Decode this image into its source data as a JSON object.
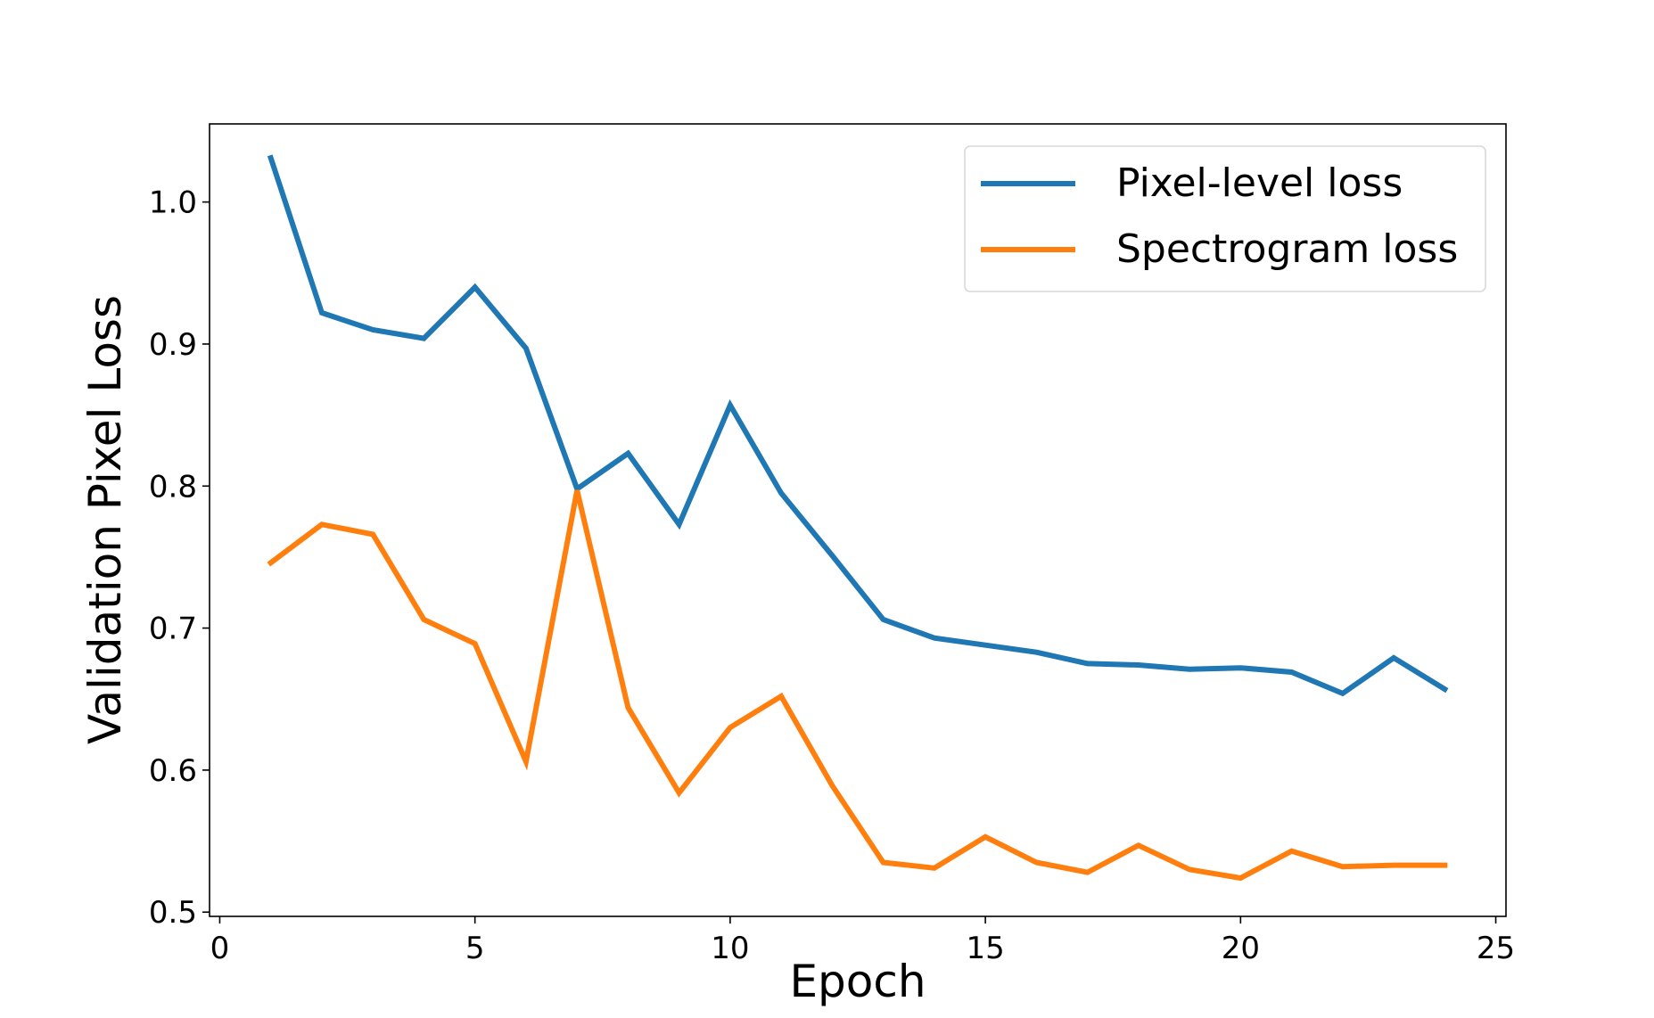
{
  "chart_data": {
    "type": "line",
    "title": "",
    "xlabel": "Epoch",
    "ylabel": "Validation Pixel Loss",
    "xlim": [
      -0.2,
      25.2
    ],
    "ylim": [
      0.497,
      1.055
    ],
    "xticks": [
      0,
      5,
      10,
      15,
      20,
      25
    ],
    "xtick_labels": [
      "0",
      "5",
      "10",
      "15",
      "20",
      "25"
    ],
    "yticks": [
      0.5,
      0.6,
      0.7,
      0.8,
      0.9,
      1.0
    ],
    "ytick_labels": [
      "0.5",
      "0.6",
      "0.7",
      "0.8",
      "0.9",
      "1.0"
    ],
    "grid": false,
    "legend_position": "top-right",
    "x": [
      1,
      2,
      3,
      4,
      5,
      6,
      7,
      8,
      9,
      10,
      11,
      12,
      13,
      14,
      15,
      16,
      17,
      18,
      19,
      20,
      21,
      22,
      23,
      24
    ],
    "series": [
      {
        "name": "Pixel-level loss",
        "color": "#1f77b4",
        "values": [
          1.031,
          0.922,
          0.91,
          0.904,
          0.94,
          0.897,
          0.798,
          0.823,
          0.773,
          0.857,
          0.795,
          0.751,
          0.706,
          0.693,
          0.688,
          0.683,
          0.675,
          0.674,
          0.671,
          0.672,
          0.669,
          0.654,
          0.679,
          0.657
        ]
      },
      {
        "name": "Spectrogram loss",
        "color": "#ff7f0e",
        "values": [
          0.746,
          0.773,
          0.766,
          0.706,
          0.689,
          0.606,
          0.797,
          0.644,
          0.584,
          0.63,
          0.652,
          0.589,
          0.535,
          0.531,
          0.553,
          0.535,
          0.528,
          0.547,
          0.53,
          0.524,
          0.543,
          0.532,
          0.533,
          0.533
        ]
      }
    ]
  }
}
